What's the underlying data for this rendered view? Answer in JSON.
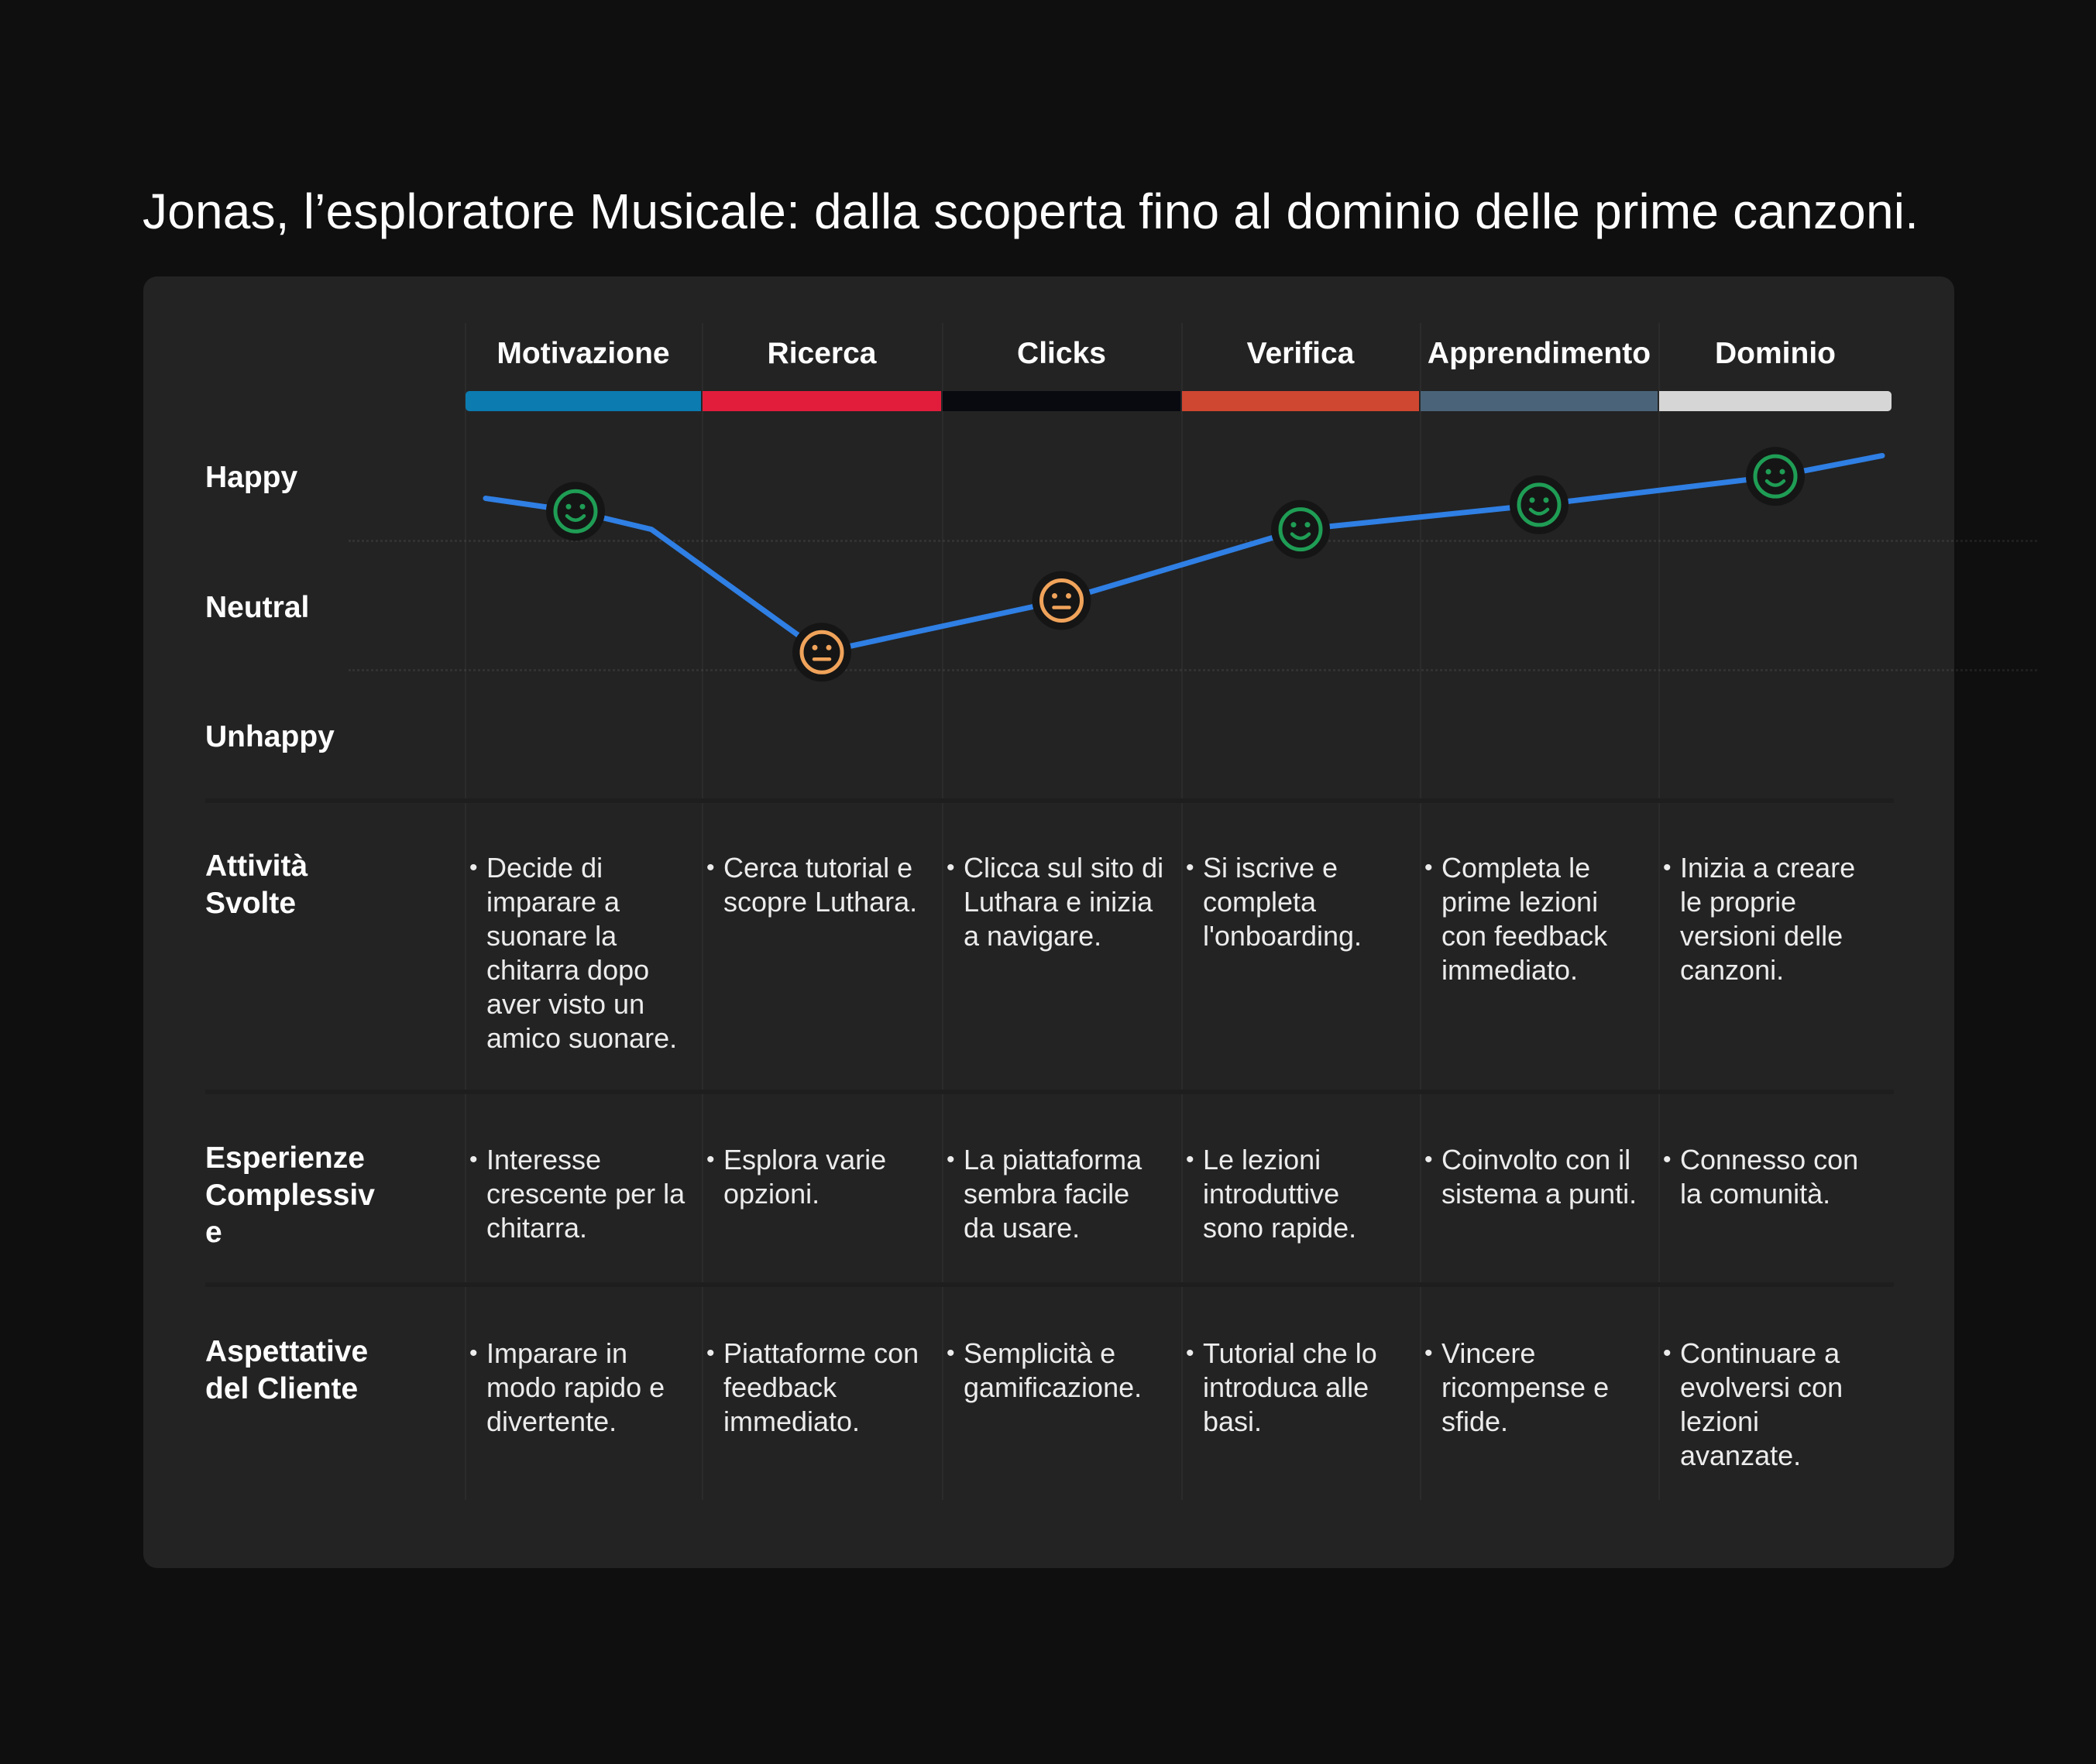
{
  "title": "Jonas, l’esploratore Musicale: dalla scoperta fino al dominio delle prime canzoni.",
  "stages": [
    {
      "name": "Motivazione",
      "color": "#0b7bb0"
    },
    {
      "name": "Ricerca",
      "color": "#e21d3c"
    },
    {
      "name": "Clicks",
      "color": "#080a10"
    },
    {
      "name": "Verifica",
      "color": "#cf4631"
    },
    {
      "name": "Apprendimento",
      "color": "#4a6378"
    },
    {
      "name": "Dominio",
      "color": "#d6d6d6"
    }
  ],
  "emotion_labels": {
    "happy": "Happy",
    "neutral": "Neutral",
    "unhappy": "Unhappy"
  },
  "emotion_curve": {
    "line_color": "#2f7fe4",
    "scale": [
      "Unhappy",
      "Neutral",
      "Happy"
    ],
    "points": [
      {
        "stage": "Motivazione",
        "level": 2.22,
        "icon": "happy-face-icon"
      },
      {
        "stage": "Ricerca",
        "level": 1.13,
        "icon": "neutral-face-icon"
      },
      {
        "stage": "Clicks",
        "level": 1.53,
        "icon": "neutral-face-icon"
      },
      {
        "stage": "Verifica",
        "level": 2.08,
        "icon": "happy-face-icon"
      },
      {
        "stage": "Apprendimento",
        "level": 2.27,
        "icon": "happy-face-icon"
      },
      {
        "stage": "Dominio",
        "level": 2.49,
        "icon": "happy-face-icon"
      }
    ],
    "happy_color": "#1f9d55",
    "neutral_color": "#f0a35a"
  },
  "rows": [
    {
      "label": "Attività Svolte",
      "cells": [
        "Decide di imparare a suonare la chitarra dopo aver visto un amico suonare.",
        "Cerca tutorial e scopre Luthara.",
        "Clicca sul sito di Luthara e inizia a navigare.",
        "Si iscrive e completa l'onboarding.",
        "Completa le prime lezioni con feedback immediato.",
        "Inizia a creare le proprie versioni delle canzoni."
      ]
    },
    {
      "label": "Esperienze Complessive",
      "cells": [
        "Interesse crescente per la chitarra.",
        "Esplora varie opzioni.",
        "La piattaforma sembra facile da usare.",
        "Le lezioni introduttive sono rapide.",
        "Coinvolto con il sistema a punti.",
        "Connesso con la comunità."
      ]
    },
    {
      "label": "Aspettative del Cliente",
      "cells": [
        "Imparare in modo rapido e divertente.",
        "Piattaforme con feedback immediato.",
        "Semplicità e gamificazione.",
        "Tutorial che lo introduca alle basi.",
        "Vincere ricompense e sfide.",
        "Continuare a evolversi con lezioni avanzate."
      ]
    }
  ]
}
